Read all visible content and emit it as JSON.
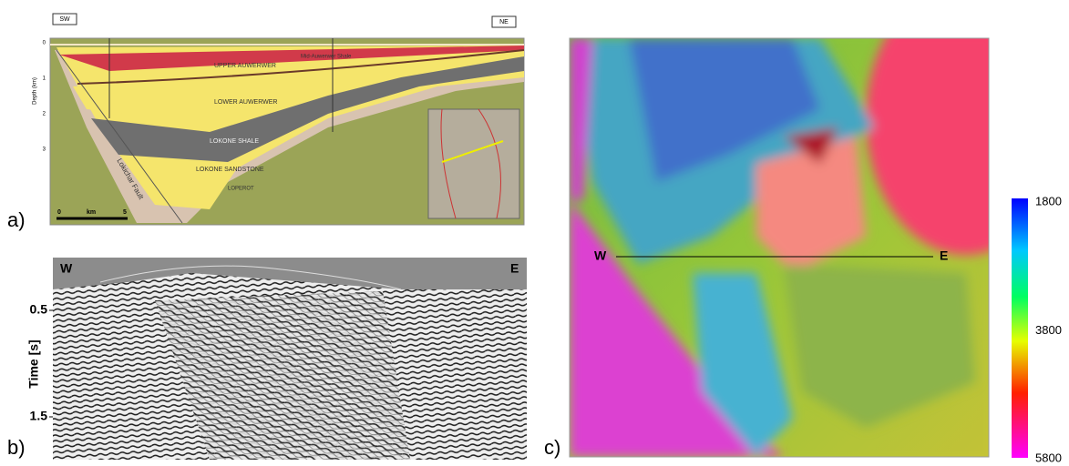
{
  "panel_a": {
    "label": "a)",
    "left_tag": "SW",
    "right_tag": "NE",
    "depth_axis": "Depth (km)",
    "depth_ticks": [
      0,
      1,
      2,
      3
    ],
    "units": [
      "Mid-Auwerwer Shale",
      "UPPER AUWERWER",
      "LOWER AUWERWER",
      "LOKONE SHALE",
      "LOKONE SANDSTONE",
      "LOPEROT"
    ],
    "fault": "Lokichar Fault",
    "scale": [
      0,
      "km",
      5
    ]
  },
  "panel_b": {
    "label": "b)",
    "west": "W",
    "east": "E",
    "axis_title": "Time [s]",
    "ticks": [
      0.5,
      1.5
    ]
  },
  "panel_c": {
    "label": "c)",
    "west": "W",
    "east": "E",
    "colorbar_ticks": [
      1800,
      3800,
      5800
    ]
  }
}
